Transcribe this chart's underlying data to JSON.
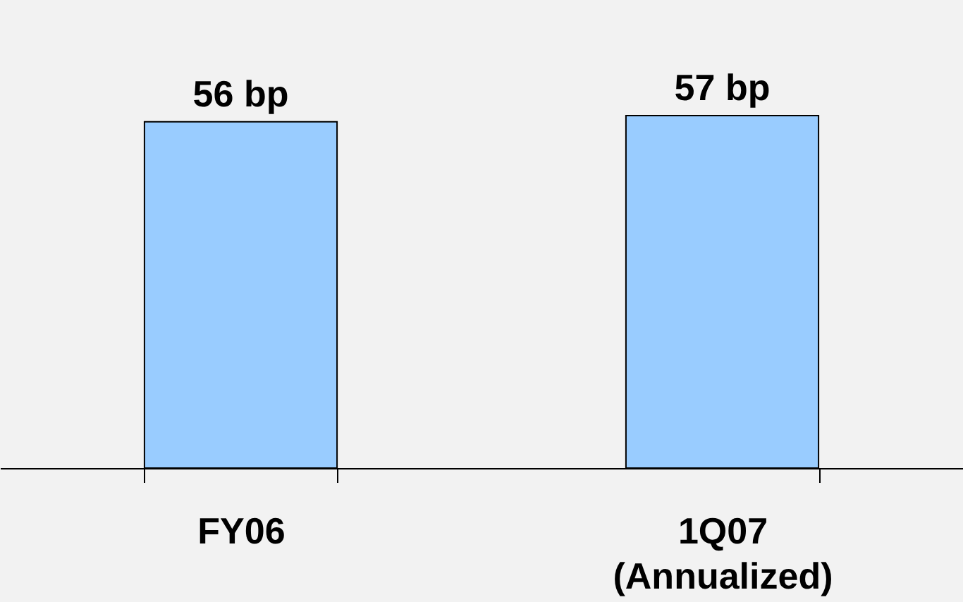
{
  "chart_data": {
    "type": "bar",
    "categories": [
      "FY06",
      "1Q07\n(Annualized)"
    ],
    "values": [
      56,
      57
    ],
    "value_labels": [
      "56 bp",
      "57 bp"
    ],
    "color": "#99ccff",
    "grid": false
  }
}
